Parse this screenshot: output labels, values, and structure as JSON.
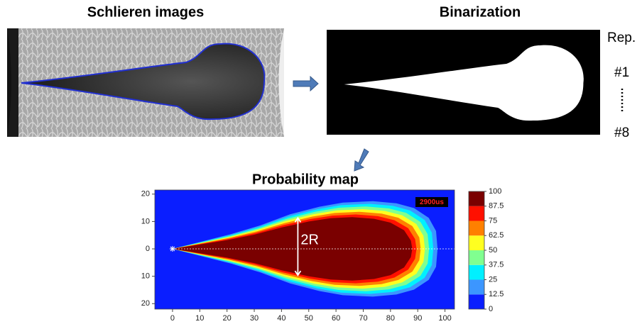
{
  "panels": {
    "schlieren": {
      "title": "Schlieren images"
    },
    "binarization": {
      "title": "Binarization",
      "repetitions": {
        "header": "Rep.",
        "first": "#1",
        "last": "#8"
      }
    }
  },
  "probability_map": {
    "title": "Probability map",
    "timestamp": "2900us",
    "annotation": "2R",
    "xlim": [
      -6.5,
      103.5
    ],
    "ylim": [
      -22,
      21.5
    ],
    "xticks": [
      0,
      10,
      20,
      30,
      40,
      50,
      60,
      70,
      80,
      90,
      100
    ],
    "yticks": [
      20,
      10,
      0,
      {
        "value": -10,
        "label": "10"
      },
      {
        "value": -20,
        "label": "20"
      }
    ],
    "colorbar": {
      "ticks": [
        0,
        12.5,
        25,
        37.5,
        50,
        62.5,
        75,
        87.5,
        100
      ],
      "colors": [
        "#0a1eff",
        "#3c96ff",
        "#00f0ff",
        "#80ff90",
        "#ffff20",
        "#ff8000",
        "#ff1000",
        "#7a0000"
      ]
    }
  }
}
